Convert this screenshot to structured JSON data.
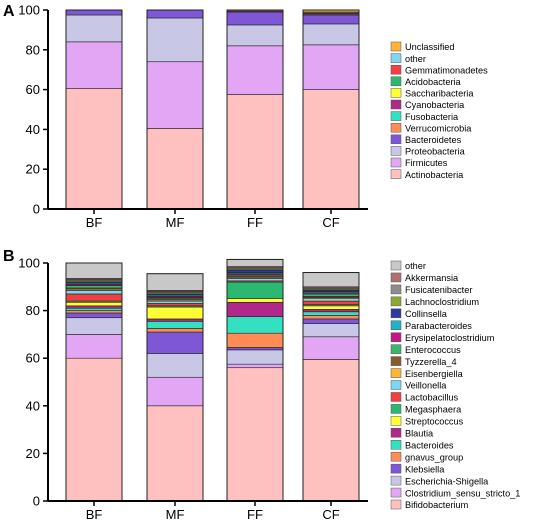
{
  "chart_data": [
    {
      "panel": "A",
      "type": "bar",
      "stacked": true,
      "categories": [
        "BF",
        "MF",
        "FF",
        "CF"
      ],
      "ylim": [
        0,
        100
      ],
      "yticks": [
        0,
        20,
        40,
        60,
        80,
        100
      ],
      "legend_position": "right",
      "series": [
        {
          "name": "Actinobacteria",
          "color": "#FFC0C0",
          "values": [
            60.5,
            40.5,
            57.5,
            60.0
          ]
        },
        {
          "name": "Firmicutes",
          "color": "#E2A6F5",
          "values": [
            23.5,
            33.5,
            24.5,
            22.5
          ]
        },
        {
          "name": "Proteobacteria",
          "color": "#C8C8E6",
          "values": [
            13.5,
            22.0,
            10.5,
            10.5
          ]
        },
        {
          "name": "Bacteroidetes",
          "color": "#7E57D6",
          "values": [
            2.5,
            4.0,
            6.5,
            4.5
          ]
        },
        {
          "name": "Verrucomicrobia",
          "color": "#FF8C55",
          "values": [
            0,
            0,
            0,
            0.5
          ]
        },
        {
          "name": "Fusobacteria",
          "color": "#33E0C0",
          "values": [
            0,
            0,
            0,
            0
          ]
        },
        {
          "name": "Cyanobacteria",
          "color": "#B0288A",
          "values": [
            0,
            0,
            0.5,
            0.5
          ]
        },
        {
          "name": "Saccharibacteria",
          "color": "#FFFF33",
          "values": [
            0,
            0,
            0,
            0
          ]
        },
        {
          "name": "Acidobacteria",
          "color": "#2DB872",
          "values": [
            0,
            0,
            0,
            0
          ]
        },
        {
          "name": "Gemmatimonadetes",
          "color": "#F04040",
          "values": [
            0,
            0,
            0,
            0
          ]
        },
        {
          "name": "other",
          "color": "#7DD6F2",
          "values": [
            0,
            0,
            0,
            0.5
          ]
        },
        {
          "name": "Unclassified",
          "color": "#FFB433",
          "values": [
            0,
            0,
            0.5,
            1.0
          ]
        }
      ]
    },
    {
      "panel": "B",
      "type": "bar",
      "stacked": true,
      "categories": [
        "BF",
        "MF",
        "FF",
        "CF"
      ],
      "ylim": [
        0,
        100
      ],
      "yticks": [
        0,
        20,
        40,
        60,
        80,
        100
      ],
      "legend_position": "right",
      "series": [
        {
          "name": "Bifidobacterium",
          "color": "#FFC0C0",
          "values": [
            60,
            40,
            56,
            59.5
          ]
        },
        {
          "name": "Clostridium_sensu_stricto_1",
          "color": "#E2A6F5",
          "values": [
            10,
            12,
            1.5,
            9.5
          ]
        },
        {
          "name": "Escherichia-Shigella",
          "color": "#C8C8E6",
          "values": [
            7,
            10,
            6,
            5.5
          ]
        },
        {
          "name": "Klebsiella",
          "color": "#7E57D6",
          "values": [
            2,
            9,
            1,
            2
          ]
        },
        {
          "name": "gnavus_group",
          "color": "#FF8C55",
          "values": [
            1,
            1.5,
            6,
            1.5
          ]
        },
        {
          "name": "Bacteroides",
          "color": "#33E0C0",
          "values": [
            1,
            3,
            7,
            1.5
          ]
        },
        {
          "name": "Blautia",
          "color": "#B0288A",
          "values": [
            1,
            1,
            6,
            1
          ]
        },
        {
          "name": "Streptococcus",
          "color": "#FFFF33",
          "values": [
            1.5,
            5,
            1.5,
            1.5
          ]
        },
        {
          "name": "Megasphaera",
          "color": "#2DB872",
          "values": [
            0.5,
            0.5,
            7,
            0.5
          ]
        },
        {
          "name": "Lactobacillus",
          "color": "#F04040",
          "values": [
            3,
            1,
            0.5,
            1.5
          ]
        },
        {
          "name": "Veillonella",
          "color": "#7DD6F2",
          "values": [
            1.5,
            1,
            1,
            1
          ]
        },
        {
          "name": "Eisenbergiella",
          "color": "#FFB433",
          "values": [
            0.5,
            0.5,
            0.5,
            0.5
          ]
        },
        {
          "name": "Tyzzerella_4",
          "color": "#8B5A2B",
          "values": [
            0.5,
            0.5,
            0.5,
            0.5
          ]
        },
        {
          "name": "Enterococcus",
          "color": "#3CB371",
          "values": [
            1,
            0.5,
            0.5,
            1
          ]
        },
        {
          "name": "Erysipelatoclostridium",
          "color": "#C71585",
          "values": [
            0.5,
            0.5,
            0.5,
            0.5
          ]
        },
        {
          "name": "Parabacteroides",
          "color": "#20B2C8",
          "values": [
            0.5,
            0.5,
            0.5,
            0.5
          ]
        },
        {
          "name": "Collinsella",
          "color": "#2E3A9E",
          "values": [
            0.5,
            0.5,
            1,
            0.5
          ]
        },
        {
          "name": "Lachnoclostridium",
          "color": "#8FA832",
          "values": [
            0.5,
            0.5,
            0.5,
            0.5
          ]
        },
        {
          "name": "Fusicatenibacter",
          "color": "#8C8C8C",
          "values": [
            0.5,
            0.5,
            0.5,
            0.5
          ]
        },
        {
          "name": "Akkermansia",
          "color": "#B07070",
          "values": [
            0.5,
            0.5,
            0.5,
            0.5
          ]
        },
        {
          "name": "other",
          "color": "#C8C8C8",
          "values": [
            6.5,
            7,
            3,
            6
          ]
        }
      ]
    }
  ],
  "panels": [
    {
      "label": "A"
    },
    {
      "label": "B"
    }
  ]
}
